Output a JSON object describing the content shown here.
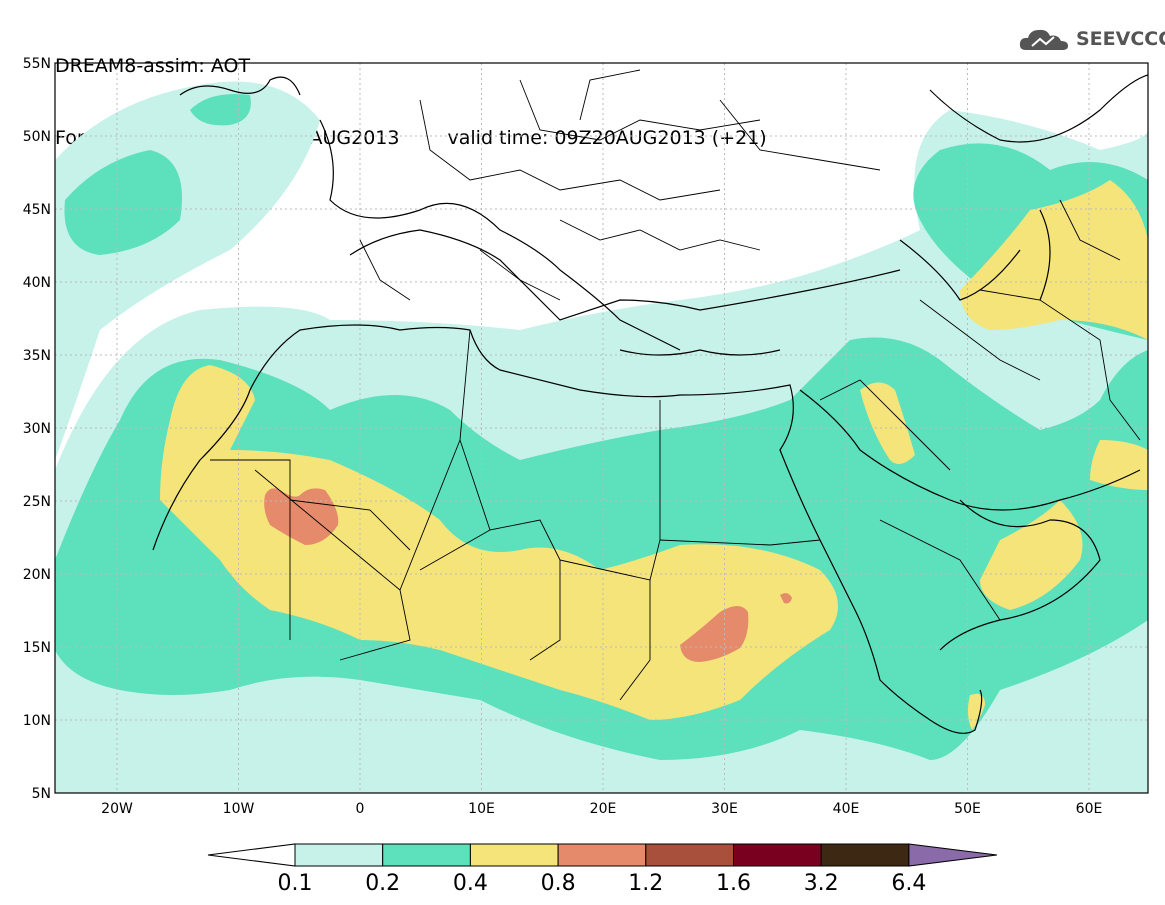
{
  "header": {
    "line1": "DREAM8-assim: AOT",
    "base_time": "Forecast base time: 12Z19AUG2013",
    "valid_time": "valid time: 09Z20AUG2013 (+21)"
  },
  "logo": {
    "icon": "cloud-icon",
    "text": "SEEVCCC"
  },
  "map": {
    "lat_labels": [
      "55N",
      "50N",
      "45N",
      "40N",
      "35N",
      "30N",
      "25N",
      "20N",
      "15N",
      "10N",
      "5N"
    ],
    "lon_labels": [
      "20W",
      "10W",
      "0",
      "10E",
      "20E",
      "30E",
      "40E",
      "50E",
      "60E"
    ],
    "colors": {
      "c01": "#c6f2ea",
      "c02": "#5de0bc",
      "c04": "#f4e47a",
      "c08": "#e58a6a",
      "border": "#000000",
      "grid": "#bbbbbb"
    }
  },
  "colorbar": {
    "labels": [
      "0.1",
      "0.2",
      "0.4",
      "0.8",
      "1.2",
      "1.6",
      "3.2",
      "6.4"
    ],
    "colors": [
      "#c6f2ea",
      "#5de0bc",
      "#f4e47a",
      "#e58a6a",
      "#a8503c",
      "#7a0020",
      "#3d2814",
      "#8a6aa8"
    ]
  }
}
